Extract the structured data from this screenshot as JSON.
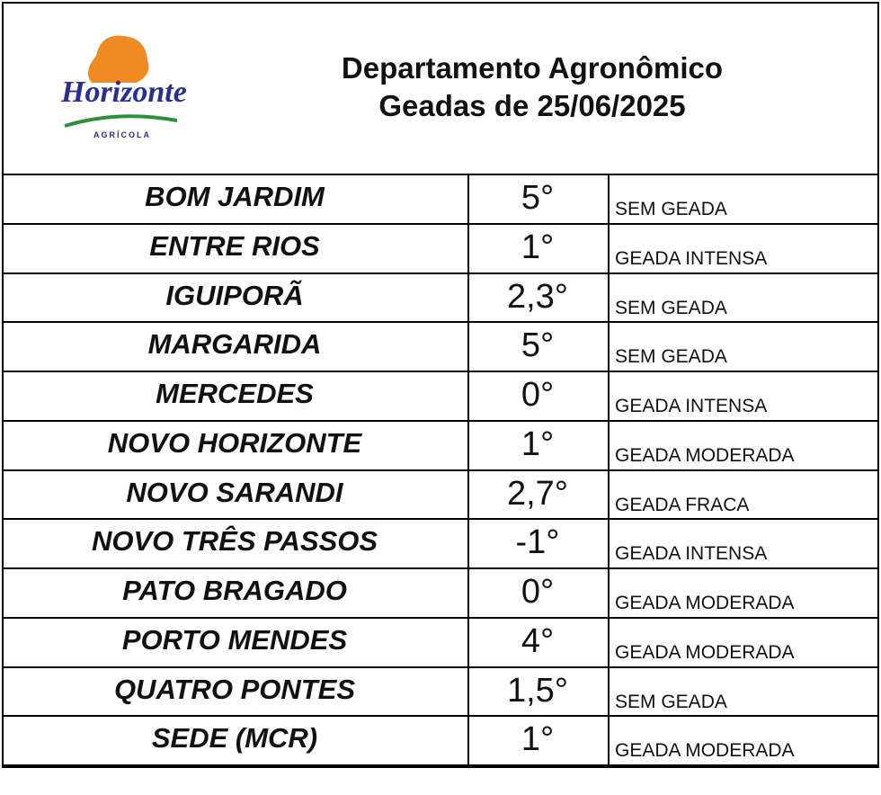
{
  "header": {
    "logo_name": "Horizonte",
    "logo_sub": "AGRÍCOLA",
    "title": [
      "Departamento Agronômico",
      "Geadas de 25/06/2025"
    ]
  },
  "table": {
    "rows": [
      [
        "BOM JARDIM",
        "5°",
        "SEM GEADA"
      ],
      [
        "ENTRE RIOS",
        "1°",
        "GEADA INTENSA"
      ],
      [
        "IGUIPORÃ",
        "2,3°",
        "SEM GEADA"
      ],
      [
        "MARGARIDA",
        "5°",
        "SEM GEADA"
      ],
      [
        "MERCEDES",
        "0°",
        "GEADA INTENSA"
      ],
      [
        "NOVO HORIZONTE",
        "1°",
        "GEADA MODERADA"
      ],
      [
        "NOVO SARANDI",
        "2,7°",
        "GEADA FRACA"
      ],
      [
        "NOVO TRÊS PASSOS",
        "-1°",
        "GEADA INTENSA"
      ],
      [
        "PATO BRAGADO",
        "0°",
        "GEADA MODERADA"
      ],
      [
        "PORTO MENDES",
        "4°",
        "GEADA MODERADA"
      ],
      [
        "QUATRO PONTES",
        "1,5°",
        "SEM GEADA"
      ],
      [
        "SEDE (MCR)",
        "1°",
        "GEADA MODERADA"
      ]
    ]
  }
}
